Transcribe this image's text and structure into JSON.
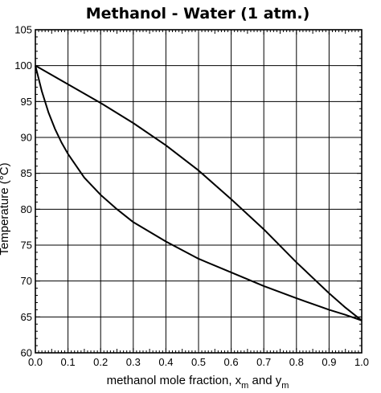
{
  "chart_data": {
    "type": "line",
    "title": "Methanol - Water (1 atm.)",
    "xlabel": {
      "text": "methanol mole fraction, x",
      "sub1": "m",
      "mid": " and y",
      "sub2": "m"
    },
    "ylabel": "Temperature (°C)",
    "xlim": [
      0,
      1
    ],
    "ylim": [
      60,
      105
    ],
    "x_ticks": [
      0.0,
      0.1,
      0.2,
      0.3,
      0.4,
      0.5,
      0.6,
      0.7,
      0.8,
      0.9,
      1.0
    ],
    "x_tick_labels": [
      "0.0",
      "0.1",
      "0.2",
      "0.3",
      "0.4",
      "0.5",
      "0.6",
      "0.7",
      "0.8",
      "0.9",
      "1.0"
    ],
    "y_ticks": [
      60,
      65,
      70,
      75,
      80,
      85,
      90,
      95,
      100,
      105
    ],
    "y_tick_labels": [
      "60",
      "65",
      "70",
      "75",
      "80",
      "85",
      "90",
      "95",
      "100",
      "105"
    ],
    "grid": true,
    "line_color": "#000000",
    "series": [
      {
        "points": [
          [
            0.0,
            100.0
          ],
          [
            0.02,
            96.4
          ],
          [
            0.04,
            93.5
          ],
          [
            0.06,
            91.2
          ],
          [
            0.08,
            89.3
          ],
          [
            0.1,
            87.7
          ],
          [
            0.15,
            84.4
          ],
          [
            0.2,
            82.0
          ],
          [
            0.25,
            80.0
          ],
          [
            0.3,
            78.2
          ],
          [
            0.4,
            75.5
          ],
          [
            0.5,
            73.1
          ],
          [
            0.6,
            71.2
          ],
          [
            0.7,
            69.3
          ],
          [
            0.8,
            67.6
          ],
          [
            0.9,
            66.0
          ],
          [
            0.95,
            65.3
          ],
          [
            1.0,
            64.5
          ]
        ]
      },
      {
        "points": [
          [
            0.0,
            100.0
          ],
          [
            0.1,
            97.4
          ],
          [
            0.2,
            94.8
          ],
          [
            0.3,
            92.0
          ],
          [
            0.4,
            88.9
          ],
          [
            0.5,
            85.4
          ],
          [
            0.6,
            81.4
          ],
          [
            0.7,
            77.2
          ],
          [
            0.8,
            72.6
          ],
          [
            0.9,
            68.3
          ],
          [
            0.95,
            66.3
          ],
          [
            1.0,
            64.5
          ]
        ]
      }
    ]
  }
}
